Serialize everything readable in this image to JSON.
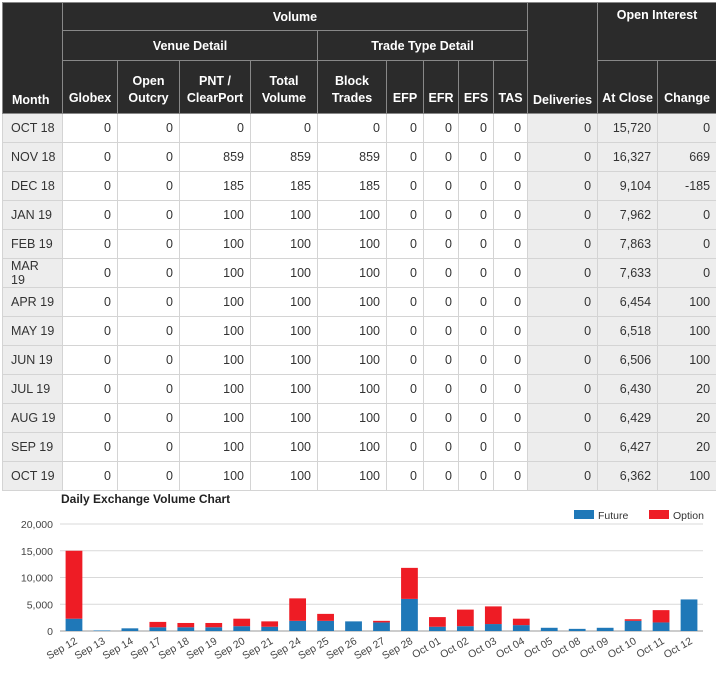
{
  "table": {
    "group_headers": {
      "volume": "Volume",
      "open_interest": "Open Interest"
    },
    "sub_headers": {
      "venue_detail": "Venue Detail",
      "trade_type_detail": "Trade Type Detail"
    },
    "columns": {
      "month": "Month",
      "globex": "Globex",
      "open_outcry": [
        "Open",
        "Outcry"
      ],
      "pnt": [
        "PNT /",
        "ClearPort"
      ],
      "total_volume": [
        "Total",
        "Volume"
      ],
      "block_trades": [
        "Block",
        "Trades"
      ],
      "efp": "EFP",
      "efr": "EFR",
      "efs": "EFS",
      "tas": "TAS",
      "deliveries": "Deliveries",
      "at_close": "At Close",
      "change": "Change"
    },
    "rows": [
      [
        "OCT 18",
        "0",
        "0",
        "0",
        "0",
        "0",
        "0",
        "0",
        "0",
        "0",
        "0",
        "15,720",
        "0"
      ],
      [
        "NOV 18",
        "0",
        "0",
        "859",
        "859",
        "859",
        "0",
        "0",
        "0",
        "0",
        "0",
        "16,327",
        "669"
      ],
      [
        "DEC 18",
        "0",
        "0",
        "185",
        "185",
        "185",
        "0",
        "0",
        "0",
        "0",
        "0",
        "9,104",
        "-185"
      ],
      [
        "JAN 19",
        "0",
        "0",
        "100",
        "100",
        "100",
        "0",
        "0",
        "0",
        "0",
        "0",
        "7,962",
        "0"
      ],
      [
        "FEB 19",
        "0",
        "0",
        "100",
        "100",
        "100",
        "0",
        "0",
        "0",
        "0",
        "0",
        "7,863",
        "0"
      ],
      [
        "MAR 19",
        "0",
        "0",
        "100",
        "100",
        "100",
        "0",
        "0",
        "0",
        "0",
        "0",
        "7,633",
        "0"
      ],
      [
        "APR 19",
        "0",
        "0",
        "100",
        "100",
        "100",
        "0",
        "0",
        "0",
        "0",
        "0",
        "6,454",
        "100"
      ],
      [
        "MAY 19",
        "0",
        "0",
        "100",
        "100",
        "100",
        "0",
        "0",
        "0",
        "0",
        "0",
        "6,518",
        "100"
      ],
      [
        "JUN 19",
        "0",
        "0",
        "100",
        "100",
        "100",
        "0",
        "0",
        "0",
        "0",
        "0",
        "6,506",
        "100"
      ],
      [
        "JUL 19",
        "0",
        "0",
        "100",
        "100",
        "100",
        "0",
        "0",
        "0",
        "0",
        "0",
        "6,430",
        "20"
      ],
      [
        "AUG 19",
        "0",
        "0",
        "100",
        "100",
        "100",
        "0",
        "0",
        "0",
        "0",
        "0",
        "6,429",
        "20"
      ],
      [
        "SEP 19",
        "0",
        "0",
        "100",
        "100",
        "100",
        "0",
        "0",
        "0",
        "0",
        "0",
        "6,427",
        "20"
      ],
      [
        "OCT 19",
        "0",
        "0",
        "100",
        "100",
        "100",
        "0",
        "0",
        "0",
        "0",
        "0",
        "6,362",
        "100"
      ]
    ]
  },
  "chart_data": {
    "type": "bar",
    "stacked": true,
    "title": "Daily Exchange Volume Chart",
    "categories": [
      "Sep 12",
      "Sep 13",
      "Sep 14",
      "Sep 17",
      "Sep 18",
      "Sep 19",
      "Sep 20",
      "Sep 21",
      "Sep 24",
      "Sep 25",
      "Sep 26",
      "Sep 27",
      "Sep 28",
      "Oct 01",
      "Oct 02",
      "Oct 03",
      "Oct 04",
      "Oct 05",
      "Oct 08",
      "Oct 09",
      "Oct 10",
      "Oct 11",
      "Oct 12"
    ],
    "series": [
      {
        "name": "Future",
        "color": "#1f78b8",
        "values": [
          2300,
          100,
          500,
          700,
          700,
          700,
          900,
          800,
          1900,
          1900,
          1800,
          1600,
          6000,
          800,
          900,
          1300,
          1100,
          600,
          400,
          600,
          1900,
          1600,
          5900
        ]
      },
      {
        "name": "Option",
        "color": "#ee1c25",
        "values": [
          12700,
          0,
          0,
          1000,
          800,
          800,
          1400,
          1000,
          4200,
          1300,
          0,
          300,
          5800,
          1800,
          3100,
          3300,
          1200,
          0,
          0,
          0,
          300,
          2300,
          0
        ]
      }
    ],
    "ylim": [
      0,
      20000
    ],
    "yticks": [
      "0",
      "5,000",
      "10,000",
      "15,000",
      "20,000"
    ],
    "grid": true,
    "legend": "top-right"
  }
}
